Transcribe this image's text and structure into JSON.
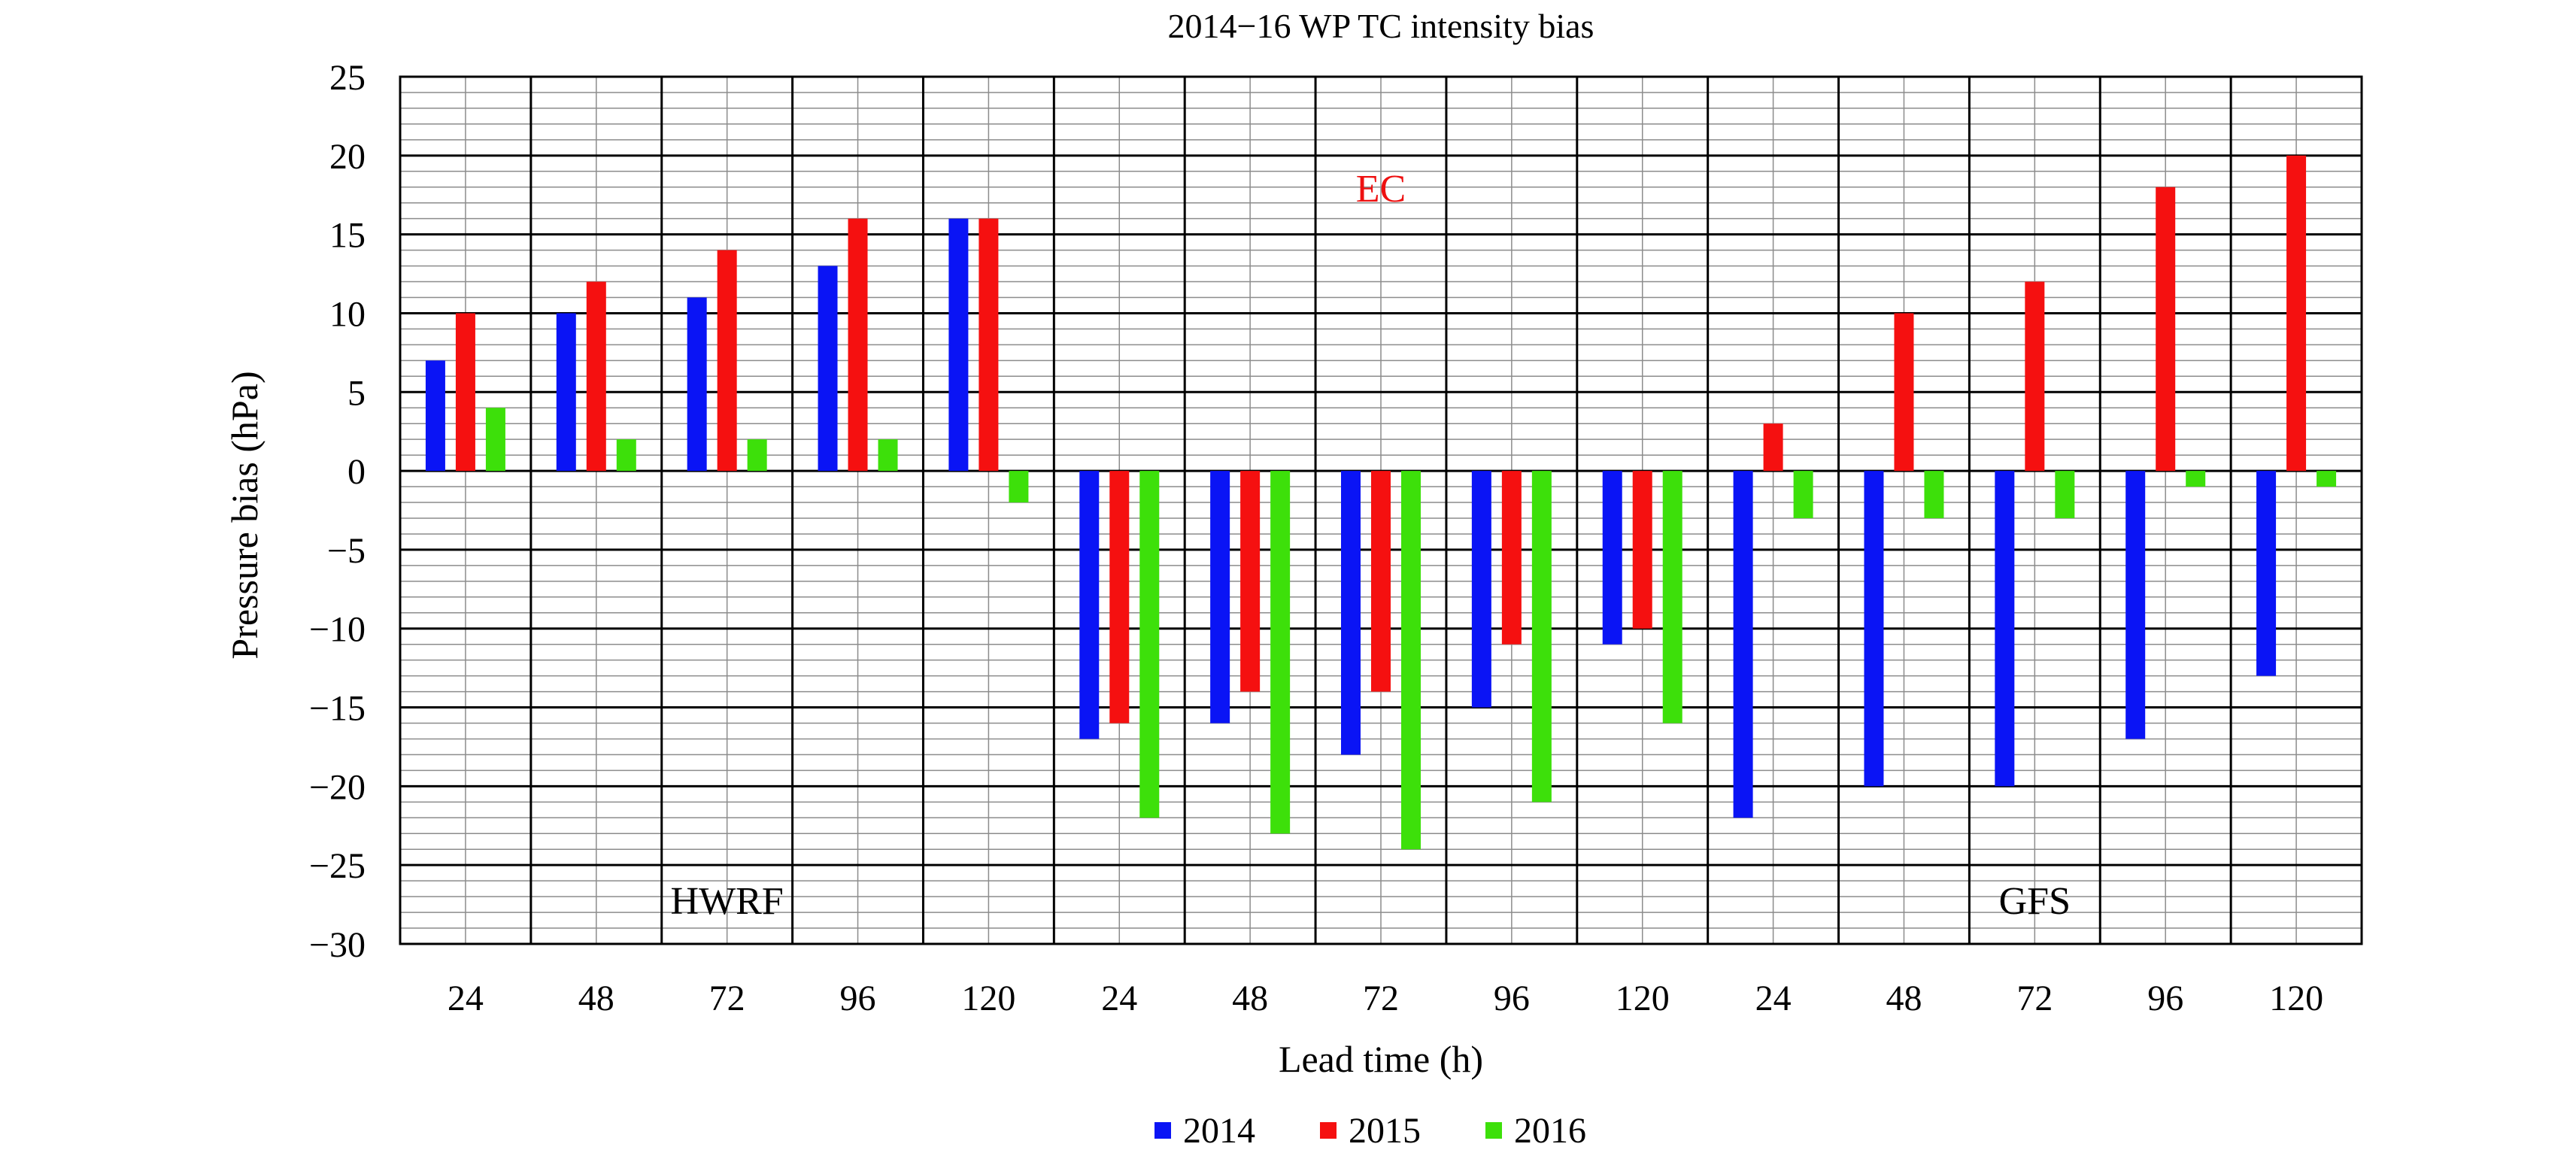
{
  "chart_data": {
    "type": "bar",
    "title": "2014−16 WP TC intensity bias",
    "xlabel": "Lead time (h)",
    "ylabel": "Pressure bias (hPa)",
    "ylim": [
      -30,
      25
    ],
    "yticks": [
      25,
      20,
      15,
      10,
      5,
      0,
      -5,
      -10,
      -15,
      -20,
      -25,
      -30
    ],
    "ytick_labels": [
      "25",
      "20",
      "15",
      "10",
      "5",
      "0",
      "−5",
      "−10",
      "−15",
      "−20",
      "−25",
      "−30"
    ],
    "grid": true,
    "legend_position": "bottom-center",
    "categories": [
      "24",
      "48",
      "72",
      "96",
      "120",
      "24",
      "48",
      "72",
      "96",
      "120",
      "24",
      "48",
      "72",
      "96",
      "120"
    ],
    "groups": [
      {
        "label": "HWRF",
        "color": "#000000",
        "start": 0,
        "end": 4
      },
      {
        "label": "EC",
        "color": "#ee1111",
        "start": 5,
        "end": 9
      },
      {
        "label": "GFS",
        "color": "#000000",
        "start": 10,
        "end": 14
      }
    ],
    "series": [
      {
        "name": "2014",
        "color": "#0a14f5",
        "values": [
          7,
          10,
          11,
          13,
          16,
          -17,
          -16,
          -18,
          -15,
          -11,
          -22,
          -20,
          -20,
          -17,
          -13
        ]
      },
      {
        "name": "2015",
        "color": "#f51010",
        "values": [
          10,
          12,
          14,
          16,
          16,
          -16,
          -14,
          -14,
          -11,
          -10,
          3,
          10,
          12,
          18,
          20
        ]
      },
      {
        "name": "2016",
        "color": "#3de00a",
        "values": [
          4,
          2,
          2,
          2,
          -2,
          -22,
          -23,
          -24,
          -21,
          -16,
          -3,
          -3,
          -3,
          -1,
          -1
        ]
      }
    ]
  }
}
